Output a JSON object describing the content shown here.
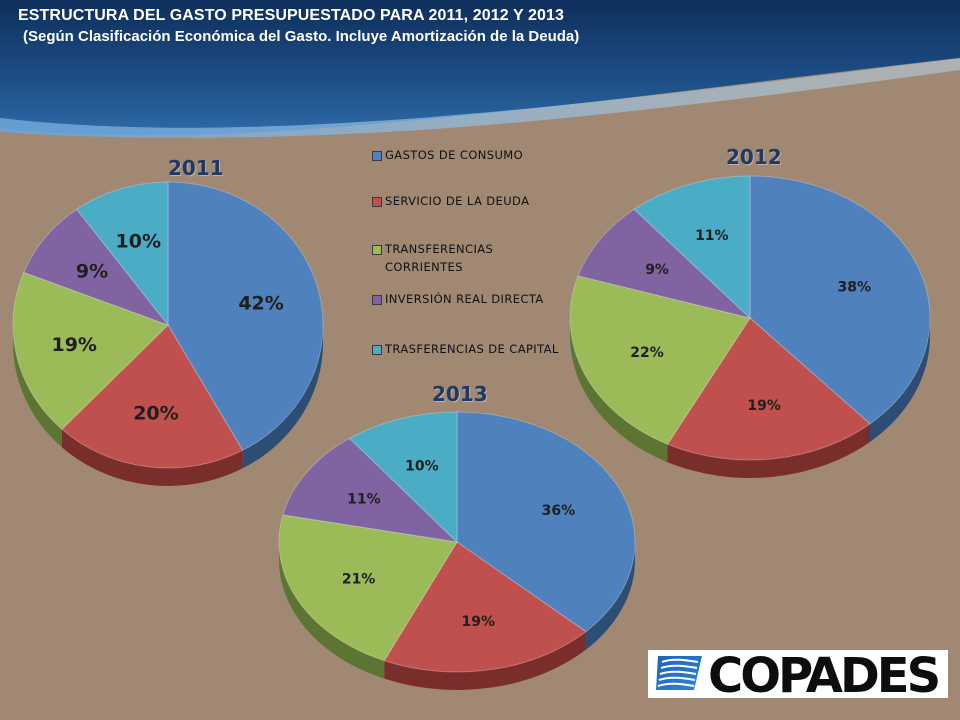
{
  "slide": {
    "title": "ESTRUCTURA DEL GASTO PRESUPUESTADO PARA 2011, 2012 Y 2013",
    "subtitle": "(Según Clasificación Económica del Gasto. Incluye Amortización de la Deuda)",
    "logo_text": "COPADES"
  },
  "legend": [
    {
      "label": "GASTOS DE CONSUMO",
      "color": "#4f81bd"
    },
    {
      "label": "SERVICIO DE LA DEUDA",
      "color": "#c0504d"
    },
    {
      "label": "TRANSFERENCIAS CORRIENTES",
      "label_lines": [
        "TRANSFERENCIAS",
        "CORRIENTES"
      ],
      "color": "#9bbb59"
    },
    {
      "label": "INVERSIÓN REAL DIRECTA",
      "color": "#8064a2"
    },
    {
      "label": "TRASFERENCIAS DE CAPITAL",
      "color": "#4bacc6"
    }
  ],
  "chart_data": [
    {
      "type": "pie",
      "title": "2011",
      "categories": [
        "GASTOS DE CONSUMO",
        "SERVICIO DE LA DEUDA",
        "TRANSFERENCIAS CORRIENTES",
        "INVERSIÓN REAL DIRECTA",
        "TRASFERENCIAS DE CAPITAL"
      ],
      "values": [
        42,
        20,
        19,
        9,
        10
      ],
      "value_labels": [
        "42%",
        "20%",
        "19%",
        "9%",
        "10%"
      ]
    },
    {
      "type": "pie",
      "title": "2012",
      "categories": [
        "GASTOS DE CONSUMO",
        "SERVICIO DE LA DEUDA",
        "TRANSFERENCIAS CORRIENTES",
        "INVERSIÓN REAL DIRECTA",
        "TRASFERENCIAS DE CAPITAL"
      ],
      "values": [
        38,
        19,
        22,
        9,
        11
      ],
      "value_labels": [
        "38%",
        "19%",
        "22%",
        "9%",
        "11%"
      ]
    },
    {
      "type": "pie",
      "title": "2013",
      "categories": [
        "GASTOS DE CONSUMO",
        "SERVICIO DE LA DEUDA",
        "TRANSFERENCIAS CORRIENTES",
        "INVERSIÓN REAL DIRECTA",
        "TRASFERENCIAS DE CAPITAL"
      ],
      "values": [
        36,
        19,
        21,
        11,
        10
      ],
      "value_labels": [
        "36%",
        "19%",
        "21%",
        "11%",
        "10%"
      ]
    }
  ]
}
